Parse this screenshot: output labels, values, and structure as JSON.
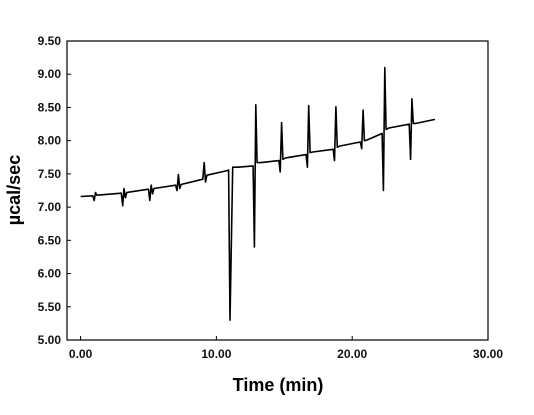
{
  "chart_data": {
    "type": "line",
    "title": "",
    "xlabel": "Time (min)",
    "ylabel": "µcal/sec",
    "xlim": [
      -1,
      30
    ],
    "ylim": [
      5.0,
      9.5
    ],
    "grid": false,
    "legend": "none",
    "line_color": "#000000",
    "x_ticks": [
      0,
      10,
      20,
      30
    ],
    "x_tick_labels": [
      "0.00",
      "10.00",
      "20.00",
      "30.00"
    ],
    "y_ticks": [
      5.0,
      5.5,
      6.0,
      6.5,
      7.0,
      7.5,
      8.0,
      8.5,
      9.0,
      9.5
    ],
    "y_tick_labels": [
      "5.00",
      "5.50",
      "6.00",
      "6.50",
      "7.00",
      "7.50",
      "8.00",
      "8.50",
      "9.00",
      "9.50"
    ],
    "series": [
      {
        "x": [
          0,
          0.9,
          1.0,
          1.1,
          1.2,
          3.0,
          3.1,
          3.2,
          3.3,
          3.4,
          5.0,
          5.1,
          5.2,
          5.3,
          5.4,
          7.0,
          7.1,
          7.2,
          7.3,
          7.4,
          9.0,
          9.1,
          9.2,
          9.3,
          10.8,
          10.9,
          11.0,
          11.2,
          11.6,
          12.7,
          12.8,
          12.9,
          13.0,
          13.3,
          14.6,
          14.7,
          14.8,
          14.9,
          15.1,
          16.6,
          16.7,
          16.8,
          16.9,
          17.1,
          18.6,
          18.7,
          18.8,
          18.9,
          19.1,
          20.6,
          20.7,
          20.8,
          20.9,
          21.1,
          22.2,
          22.3,
          22.4,
          22.5,
          22.7,
          24.2,
          24.3,
          24.4,
          24.5,
          24.7,
          26.1
        ],
        "y": [
          7.16,
          7.17,
          7.1,
          7.22,
          7.18,
          7.21,
          7.02,
          7.28,
          7.14,
          7.22,
          7.27,
          7.1,
          7.33,
          7.2,
          7.28,
          7.33,
          7.25,
          7.49,
          7.28,
          7.34,
          7.42,
          7.67,
          7.38,
          7.48,
          7.55,
          7.56,
          5.3,
          7.6,
          7.6,
          7.62,
          6.4,
          8.54,
          7.67,
          7.67,
          7.7,
          7.53,
          8.27,
          7.72,
          7.74,
          7.79,
          7.6,
          8.53,
          7.82,
          7.83,
          7.87,
          7.7,
          8.51,
          7.9,
          7.92,
          7.98,
          7.88,
          8.46,
          8.0,
          8.01,
          8.11,
          7.25,
          9.1,
          8.17,
          8.19,
          8.25,
          7.72,
          8.63,
          8.26,
          8.26,
          8.32
        ]
      }
    ]
  }
}
